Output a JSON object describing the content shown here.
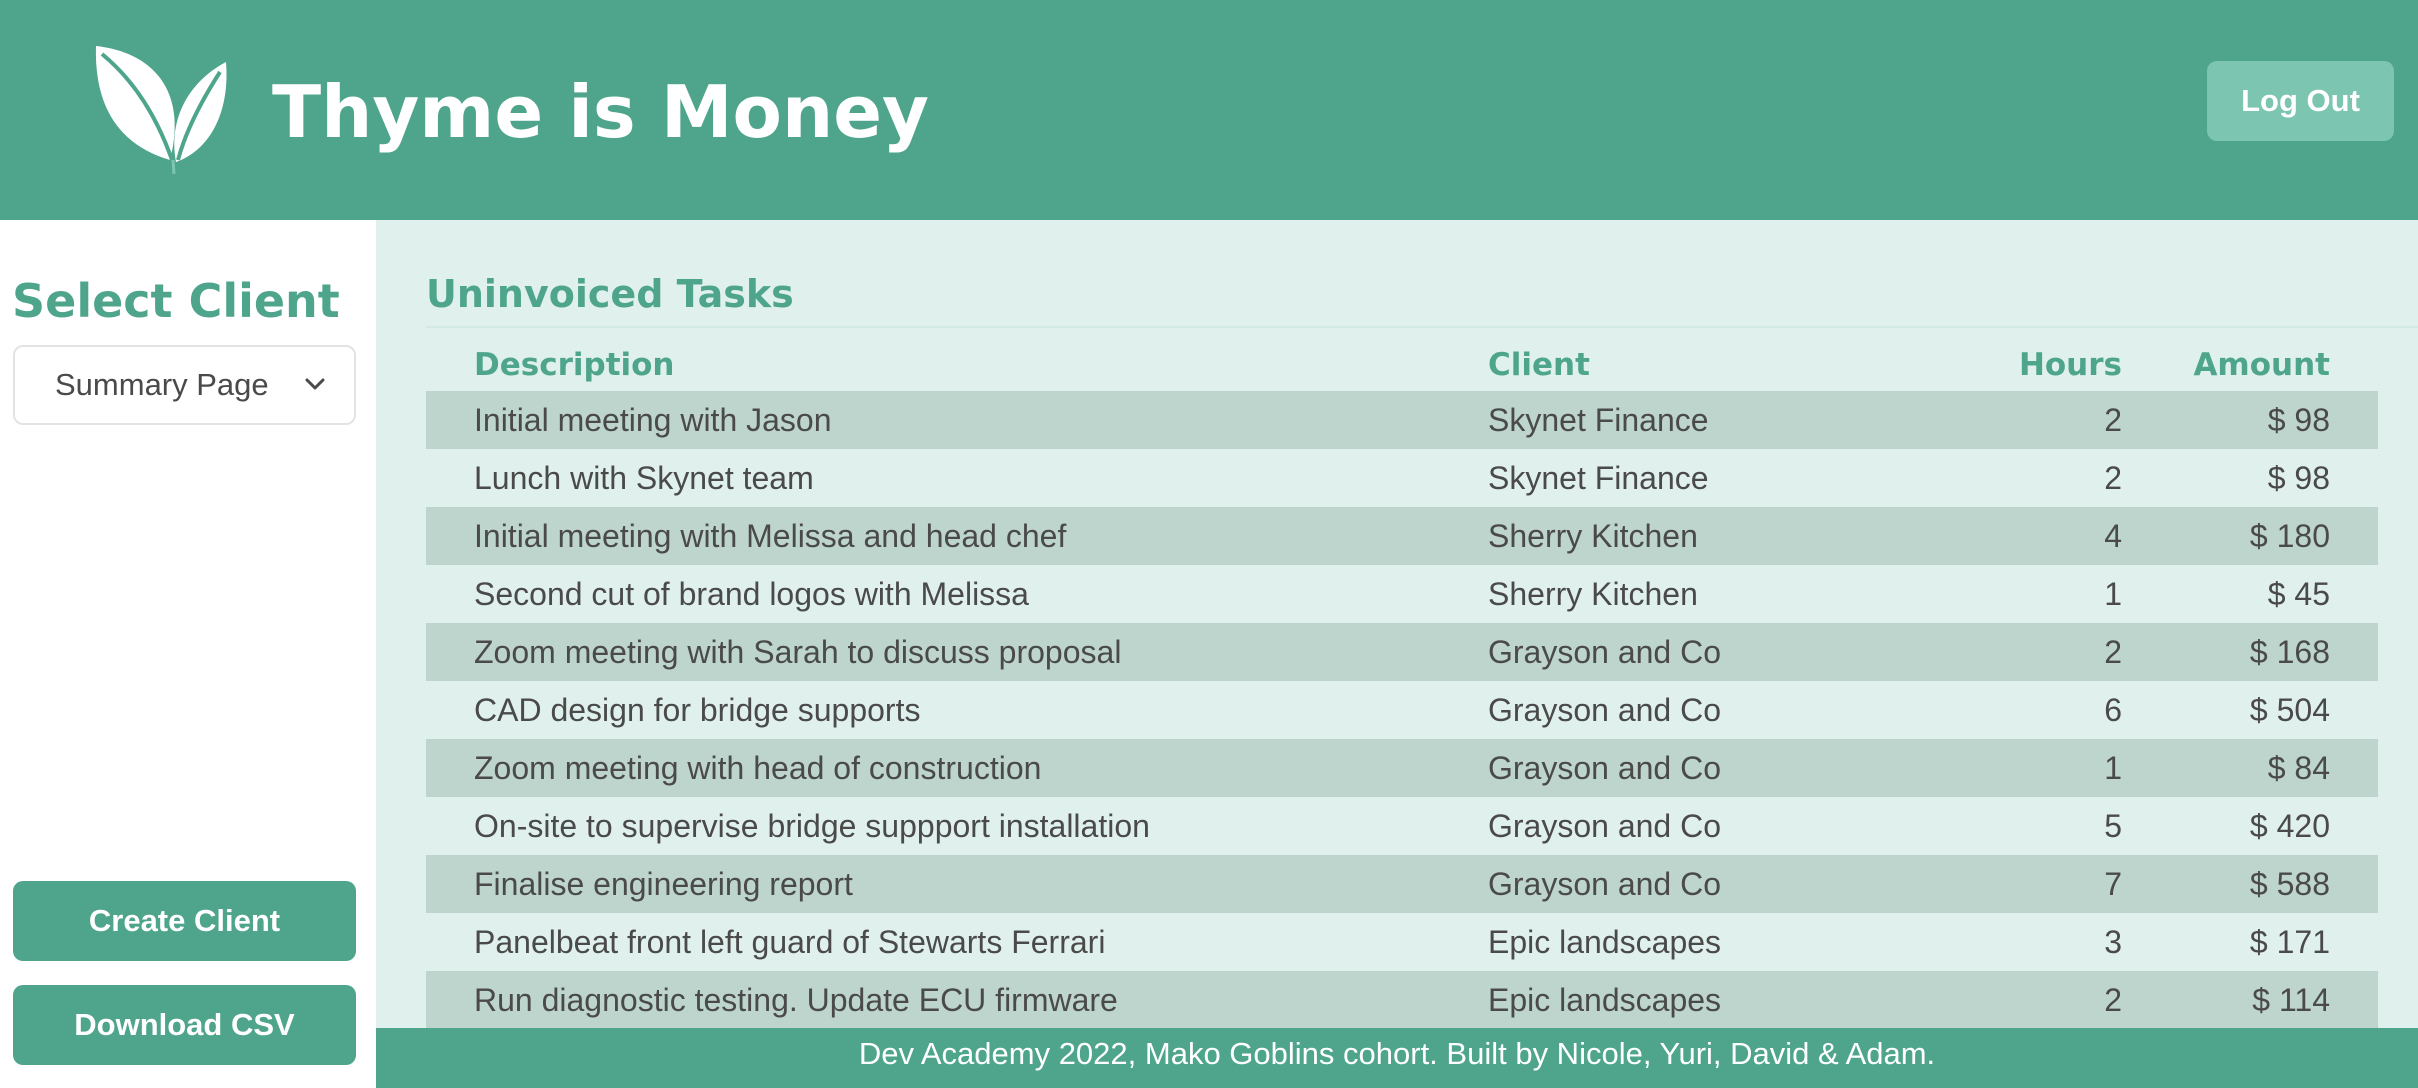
{
  "header": {
    "app_title": "Thyme is Money",
    "logo_icon": "sprout-leaves-icon",
    "logout_label": "Log Out"
  },
  "sidebar": {
    "title": "Select Client",
    "select": {
      "value": "Summary Page",
      "icon": "chevron-down-icon"
    },
    "create_client_label": "Create Client",
    "download_csv_label": "Download CSV"
  },
  "main": {
    "title": "Uninvoiced Tasks",
    "table": {
      "headers": {
        "description": "Description",
        "client": "Client",
        "hours": "Hours",
        "amount": "Amount"
      },
      "rows": [
        {
          "description": "Initial meeting with Jason",
          "client": "Skynet Finance",
          "hours": "2",
          "amount": "$ 98"
        },
        {
          "description": "Lunch with Skynet team",
          "client": "Skynet Finance",
          "hours": "2",
          "amount": "$ 98"
        },
        {
          "description": "Initial meeting with Melissa and head chef",
          "client": "Sherry Kitchen",
          "hours": "4",
          "amount": "$ 180"
        },
        {
          "description": "Second cut of brand logos with Melissa",
          "client": "Sherry Kitchen",
          "hours": "1",
          "amount": "$ 45"
        },
        {
          "description": "Zoom meeting with Sarah to discuss proposal",
          "client": "Grayson and Co",
          "hours": "2",
          "amount": "$ 168"
        },
        {
          "description": "CAD design for bridge supports",
          "client": "Grayson and Co",
          "hours": "6",
          "amount": "$ 504"
        },
        {
          "description": "Zoom meeting with head of construction",
          "client": "Grayson and Co",
          "hours": "1",
          "amount": "$ 84"
        },
        {
          "description": "On-site to supervise bridge suppport installation",
          "client": "Grayson and Co",
          "hours": "5",
          "amount": "$ 420"
        },
        {
          "description": "Finalise engineering report",
          "client": "Grayson and Co",
          "hours": "7",
          "amount": "$ 588"
        },
        {
          "description": "Panelbeat front left guard of Stewarts Ferrari",
          "client": "Epic landscapes",
          "hours": "3",
          "amount": "$ 171"
        },
        {
          "description": "Run diagnostic testing. Update ECU firmware",
          "client": "Epic landscapes",
          "hours": "2",
          "amount": "$ 114"
        }
      ]
    }
  },
  "footer": {
    "text": "Dev Academy 2022, Mako Goblins cohort. Built by Nicole, Yuri, David & Adam."
  },
  "colors": {
    "brand_green": "#4ea58b",
    "logout_button": "#7cc6b1",
    "content_background": "#e0f1ed",
    "striped_row": "#bed5ce",
    "body_text": "#4a4a4a"
  }
}
